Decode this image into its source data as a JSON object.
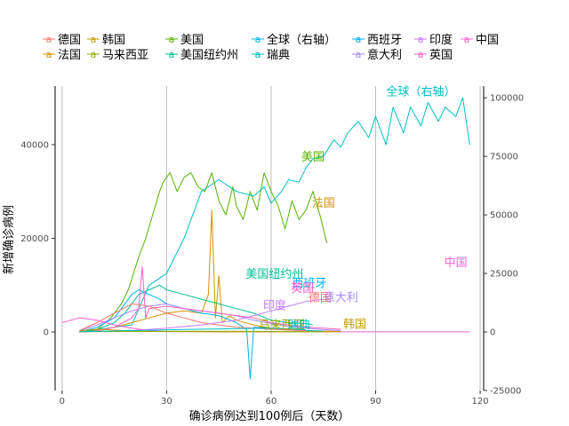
{
  "chart_data": {
    "type": "line",
    "title": "",
    "xlabel": "确诊病例达到100例后（天数）",
    "ylabel": "新增确诊病例",
    "xlim": [
      -2,
      121
    ],
    "ylim": [
      -12500,
      52500
    ],
    "ylim_right": [
      -25000,
      105000
    ],
    "x_ticks": [
      0,
      30,
      60,
      90,
      120
    ],
    "y_ticks_left": [
      0,
      20000,
      40000
    ],
    "y_ticks_right": [
      -25000,
      0,
      25000,
      50000,
      75000,
      100000
    ],
    "grid": "vertical-only",
    "legend_position": "top",
    "legend": [
      {
        "label": "德国",
        "color": "#F8766D"
      },
      {
        "label": "韩国",
        "color": "#C49A00"
      },
      {
        "label": "美国",
        "color": "#53B400"
      },
      {
        "label": "全球（右轴）",
        "color": "#00B6EB"
      },
      {
        "label": "西班牙",
        "color": "#00B0F6"
      },
      {
        "label": "印度",
        "color": "#C77CFF"
      },
      {
        "label": "中国",
        "color": "#FB61D7"
      },
      {
        "label": "法国",
        "color": "#D39200"
      },
      {
        "label": "马来西亚",
        "color": "#93AA00"
      },
      {
        "label": "美国纽约州",
        "color": "#00C094"
      },
      {
        "label": "瑞典",
        "color": "#00BFC4"
      },
      {
        "label": "意大利",
        "color": "#A58AFF"
      },
      {
        "label": "英国",
        "color": "#FF61C3"
      }
    ],
    "series": [
      {
        "name": "美国",
        "color": "#53B400",
        "axis": "left",
        "x": [
          5,
          10,
          14,
          17,
          19,
          22,
          24,
          26,
          28,
          29,
          31,
          33,
          35,
          37,
          39,
          41,
          43,
          45,
          47,
          49,
          50,
          52,
          54,
          56,
          58,
          60,
          62,
          64,
          66,
          68,
          70,
          72,
          74,
          76
        ],
        "y": [
          0,
          500,
          3000,
          6000,
          9000,
          16000,
          20000,
          25000,
          30000,
          32000,
          34000,
          30000,
          33000,
          34000,
          31000,
          30000,
          34000,
          28000,
          25000,
          31000,
          27000,
          24000,
          30000,
          26000,
          34000,
          30000,
          27000,
          22000,
          28000,
          24000,
          26000,
          30000,
          25000,
          19000
        ]
      },
      {
        "name": "全球（右轴）",
        "color": "#00BFC4",
        "axis": "right",
        "x": [
          5,
          15,
          20,
          25,
          30,
          35,
          40,
          45,
          50,
          55,
          58,
          60,
          63,
          65,
          68,
          70,
          72,
          75,
          78,
          80,
          82,
          85,
          88,
          90,
          93,
          95,
          98,
          100,
          103,
          105,
          108,
          110,
          113,
          115,
          117
        ],
        "y": [
          0,
          2000,
          3000,
          20000,
          25000,
          40000,
          60000,
          65000,
          60000,
          58000,
          62000,
          55000,
          60000,
          65000,
          64000,
          70000,
          74000,
          75000,
          82000,
          79000,
          85000,
          90000,
          83000,
          92000,
          80000,
          96000,
          85000,
          96000,
          88000,
          98000,
          90000,
          96000,
          92000,
          100000,
          80000
        ]
      },
      {
        "name": "法国",
        "color": "#D39200",
        "axis": "left",
        "x": [
          5,
          10,
          15,
          20,
          25,
          30,
          35,
          40,
          42,
          43,
          44,
          45,
          46,
          48,
          50,
          55,
          60,
          65,
          70,
          75,
          80
        ],
        "y": [
          0,
          300,
          1000,
          2000,
          3000,
          4000,
          4500,
          4000,
          8000,
          26000,
          3000,
          12000,
          2000,
          3500,
          2500,
          1500,
          800,
          500,
          300,
          200,
          100
        ]
      },
      {
        "name": "美国纽约州",
        "color": "#00C094",
        "axis": "left",
        "x": [
          5,
          10,
          15,
          18,
          20,
          22,
          25,
          28,
          30,
          35,
          40,
          45,
          50,
          55,
          60,
          65,
          70,
          72
        ],
        "y": [
          0,
          500,
          2000,
          4000,
          6000,
          8000,
          9000,
          10000,
          9000,
          8000,
          7000,
          6000,
          5000,
          4000,
          2500,
          2000,
          1800,
          1500
        ]
      },
      {
        "name": "西班牙",
        "color": "#00B0F6",
        "axis": "left",
        "x": [
          5,
          10,
          15,
          18,
          20,
          22,
          25,
          28,
          30,
          35,
          40,
          45,
          50,
          53,
          54,
          55,
          58,
          60,
          65,
          70,
          75
        ],
        "y": [
          0,
          1000,
          3000,
          6000,
          8000,
          9000,
          8000,
          7000,
          6000,
          5000,
          4000,
          3500,
          2000,
          500,
          -10000,
          1000,
          900,
          600,
          400,
          300,
          200
        ]
      },
      {
        "name": "意大利",
        "color": "#A58AFF",
        "axis": "left",
        "x": [
          5,
          10,
          15,
          20,
          25,
          30,
          35,
          40,
          45,
          50,
          55,
          60,
          65,
          70,
          75,
          80
        ],
        "y": [
          200,
          1500,
          3000,
          4500,
          5500,
          6000,
          5000,
          4500,
          4000,
          3500,
          2500,
          1800,
          1200,
          800,
          500,
          300
        ]
      },
      {
        "name": "英国",
        "color": "#FF61C3",
        "axis": "left",
        "x": [
          5,
          10,
          15,
          20,
          22,
          23,
          24,
          25,
          30,
          35,
          40,
          45,
          50,
          55,
          60,
          65,
          70,
          75,
          80
        ],
        "y": [
          0,
          200,
          1000,
          3000,
          5000,
          14000,
          3000,
          5000,
          5500,
          5000,
          4500,
          4000,
          3500,
          3000,
          2000,
          1500,
          1000,
          800,
          600
        ]
      },
      {
        "name": "德国",
        "color": "#F8766D",
        "axis": "left",
        "x": [
          5,
          10,
          15,
          20,
          25,
          30,
          35,
          40,
          45,
          50,
          55,
          60,
          65,
          70
        ],
        "y": [
          300,
          2000,
          4000,
          6000,
          5500,
          4000,
          3000,
          2000,
          1500,
          1000,
          800,
          600,
          400,
          300
        ]
      },
      {
        "name": "印度",
        "color": "#C77CFF",
        "axis": "left",
        "x": [
          5,
          20,
          30,
          40,
          50,
          55,
          60,
          65,
          70,
          75
        ],
        "y": [
          0,
          300,
          800,
          1500,
          2500,
          3500,
          4500,
          5500,
          6500,
          7000
        ]
      },
      {
        "name": "中国",
        "color": "#FB61D7",
        "axis": "left",
        "x": [
          0,
          5,
          10,
          15,
          20,
          25,
          30,
          40,
          60,
          80,
          100,
          117
        ],
        "y": [
          2000,
          3000,
          2500,
          1500,
          800,
          300,
          100,
          50,
          20,
          20,
          20,
          20
        ]
      },
      {
        "name": "韩国",
        "color": "#C49A00",
        "axis": "left",
        "x": [
          5,
          10,
          15,
          20,
          25,
          30,
          40,
          50,
          60,
          70,
          80
        ],
        "y": [
          200,
          600,
          400,
          200,
          100,
          80,
          50,
          30,
          20,
          30,
          50
        ]
      },
      {
        "name": "马来西亚",
        "color": "#93AA00",
        "axis": "left",
        "x": [
          5,
          20,
          40,
          60,
          75
        ],
        "y": [
          50,
          100,
          150,
          100,
          50
        ]
      },
      {
        "name": "瑞典",
        "color": "#00BFC4",
        "axis": "left",
        "x": [
          5,
          20,
          40,
          60,
          70
        ],
        "y": [
          50,
          300,
          600,
          800,
          500
        ]
      }
    ],
    "labels": [
      {
        "text": "全球（右轴）",
        "x": 103,
        "y": 51500,
        "color": "#00BFC4"
      },
      {
        "text": "美国",
        "x": 72,
        "y": 37500,
        "color": "#53B400"
      },
      {
        "text": "法国",
        "x": 75,
        "y": 27700,
        "color": "#D39200"
      },
      {
        "text": "中国",
        "x": 113,
        "y": 15000,
        "color": "#FB61D7"
      },
      {
        "text": "美国纽约州",
        "x": 61,
        "y": 12500,
        "color": "#00C094"
      },
      {
        "text": "西班牙",
        "x": 71,
        "y": 10500,
        "color": "#00B0F6"
      },
      {
        "text": "英国",
        "x": 69,
        "y": 9500,
        "color": "#FF61C3"
      },
      {
        "text": "德国",
        "x": 74,
        "y": 7500,
        "color": "#F8766D"
      },
      {
        "text": "意大利",
        "x": 80,
        "y": 7500,
        "color": "#A58AFF"
      },
      {
        "text": "印度",
        "x": 61,
        "y": 5800,
        "color": "#C77CFF"
      },
      {
        "text": "韩国",
        "x": 84,
        "y": 1800,
        "color": "#C49A00"
      },
      {
        "text": "马来西亚",
        "x": 63,
        "y": 1600,
        "color": "#93AA00"
      },
      {
        "text": "瑞典",
        "x": 68,
        "y": 1600,
        "color": "#00BFC4"
      }
    ]
  }
}
